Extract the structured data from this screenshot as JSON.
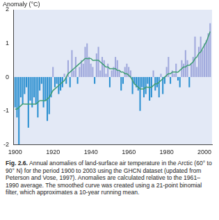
{
  "chart_data": {
    "type": "bar",
    "y_label": "Anomaly (°C)",
    "caption_label": "Fig. 2.6.",
    "caption": "Annual anomalies of land-surface air temperature in the Arctic (60° to 90° N) for the period 1900 to 2003 using the GHCN dataset (updated from Peterson and Vose, 1997). Anomalies are calculated relative to the 1961–1990 average. The smoothed curve was created using a 21-point binomial filter, which approximates a 10-year running mean.",
    "x": [
      1900,
      1901,
      1902,
      1903,
      1904,
      1905,
      1906,
      1907,
      1908,
      1909,
      1910,
      1911,
      1912,
      1913,
      1914,
      1915,
      1916,
      1917,
      1918,
      1919,
      1920,
      1921,
      1922,
      1923,
      1924,
      1925,
      1926,
      1927,
      1928,
      1929,
      1930,
      1931,
      1932,
      1933,
      1934,
      1935,
      1936,
      1937,
      1938,
      1939,
      1940,
      1941,
      1942,
      1943,
      1944,
      1945,
      1946,
      1947,
      1948,
      1949,
      1950,
      1951,
      1952,
      1953,
      1954,
      1955,
      1956,
      1957,
      1958,
      1959,
      1960,
      1961,
      1962,
      1963,
      1964,
      1965,
      1966,
      1967,
      1968,
      1969,
      1970,
      1971,
      1972,
      1973,
      1974,
      1975,
      1976,
      1977,
      1978,
      1979,
      1980,
      1981,
      1982,
      1983,
      1984,
      1985,
      1986,
      1987,
      1988,
      1989,
      1990,
      1991,
      1992,
      1993,
      1994,
      1995,
      1996,
      1997,
      1998,
      1999,
      2000,
      2001,
      2002,
      2003
    ],
    "series": [
      {
        "type": "bar",
        "values": [
          -0.9,
          -1.2,
          -2.0,
          -0.6,
          -0.8,
          -0.5,
          -0.3,
          -1.5,
          -0.7,
          -0.9,
          -0.6,
          -0.8,
          -1.2,
          -0.4,
          -0.2,
          -0.9,
          -0.7,
          -1.3,
          -1.1,
          -0.6,
          0.3,
          -0.3,
          -0.2,
          -0.5,
          -0.4,
          -0.3,
          0.1,
          -0.2,
          0.5,
          -0.3,
          0.8,
          0.2,
          0.6,
          -0.2,
          0.3,
          0.5,
          0.4,
          0.9,
          1.0,
          0.6,
          0.4,
          0.3,
          -0.2,
          0.7,
          0.9,
          0.2,
          0.6,
          0.5,
          0.1,
          0.4,
          -0.3,
          0.2,
          0.3,
          0.6,
          0.5,
          0.2,
          -0.4,
          -0.2,
          0.3,
          0.4,
          0.3,
          0.2,
          -0.5,
          -0.2,
          -0.3,
          -0.4,
          -1.0,
          -0.3,
          -0.6,
          -0.5,
          -0.2,
          -0.7,
          -0.6,
          0.2,
          -0.4,
          -0.3,
          -0.6,
          0.1,
          -0.5,
          -0.2,
          0.3,
          0.6,
          -0.2,
          0.2,
          0.1,
          0.4,
          -0.1,
          -0.3,
          0.5,
          0.4,
          0.8,
          0.5,
          -0.3,
          0.4,
          0.6,
          1.2,
          0.3,
          0.9,
          1.2,
          0.8,
          1.0,
          1.1,
          1.3,
          1.6
        ],
        "colors": [
          "#2a8fd0",
          "#2a8fd0",
          "#2a8fd0",
          "#2a8fd0",
          "#2a8fd0",
          "#2a8fd0",
          "#2a8fd0",
          "#2a8fd0",
          "#2a8fd0",
          "#2a8fd0",
          "#2a8fd0",
          "#2a8fd0",
          "#2a8fd0",
          "#2a8fd0",
          "#2a8fd0",
          "#2a8fd0",
          "#2a8fd0",
          "#2a8fd0",
          "#2a8fd0",
          "#2a8fd0",
          "#9fa8dc",
          "#2a8fd0",
          "#2a8fd0",
          "#2a8fd0",
          "#2a8fd0",
          "#2a8fd0",
          "#9fa8dc",
          "#2a8fd0",
          "#9fa8dc",
          "#2a8fd0",
          "#9fa8dc",
          "#9fa8dc",
          "#9fa8dc",
          "#2a8fd0",
          "#9fa8dc",
          "#9fa8dc",
          "#9fa8dc",
          "#9fa8dc",
          "#9fa8dc",
          "#9fa8dc",
          "#9fa8dc",
          "#9fa8dc",
          "#2a8fd0",
          "#9fa8dc",
          "#9fa8dc",
          "#9fa8dc",
          "#9fa8dc",
          "#9fa8dc",
          "#9fa8dc",
          "#9fa8dc",
          "#2a8fd0",
          "#9fa8dc",
          "#9fa8dc",
          "#9fa8dc",
          "#9fa8dc",
          "#9fa8dc",
          "#2a8fd0",
          "#2a8fd0",
          "#9fa8dc",
          "#9fa8dc",
          "#9fa8dc",
          "#9fa8dc",
          "#2a8fd0",
          "#2a8fd0",
          "#2a8fd0",
          "#2a8fd0",
          "#2a8fd0",
          "#2a8fd0",
          "#2a8fd0",
          "#2a8fd0",
          "#2a8fd0",
          "#2a8fd0",
          "#2a8fd0",
          "#9fa8dc",
          "#2a8fd0",
          "#2a8fd0",
          "#2a8fd0",
          "#9fa8dc",
          "#2a8fd0",
          "#2a8fd0",
          "#9fa8dc",
          "#9fa8dc",
          "#2a8fd0",
          "#9fa8dc",
          "#9fa8dc",
          "#9fa8dc",
          "#2a8fd0",
          "#2a8fd0",
          "#9fa8dc",
          "#9fa8dc",
          "#9fa8dc",
          "#9fa8dc",
          "#2a8fd0",
          "#9fa8dc",
          "#9fa8dc",
          "#9fa8dc",
          "#9fa8dc",
          "#9fa8dc",
          "#9fa8dc",
          "#9fa8dc",
          "#9fa8dc",
          "#9fa8dc",
          "#9fa8dc",
          "#9fa8dc"
        ]
      },
      {
        "type": "line",
        "color": "#3f9e73",
        "marker": "none",
        "values": [
          -0.95,
          -0.95,
          -0.9,
          -0.85,
          -0.8,
          -0.8,
          -0.8,
          -0.8,
          -0.8,
          -0.8,
          -0.8,
          -0.8,
          -0.75,
          -0.7,
          -0.7,
          -0.7,
          -0.7,
          -0.65,
          -0.6,
          -0.5,
          -0.4,
          -0.35,
          -0.3,
          -0.25,
          -0.2,
          -0.15,
          -0.1,
          0,
          0.1,
          0.15,
          0.2,
          0.25,
          0.3,
          0.35,
          0.4,
          0.45,
          0.5,
          0.55,
          0.55,
          0.55,
          0.55,
          0.5,
          0.5,
          0.5,
          0.5,
          0.45,
          0.4,
          0.35,
          0.3,
          0.3,
          0.25,
          0.25,
          0.25,
          0.25,
          0.2,
          0.2,
          0.15,
          0.15,
          0.1,
          0.1,
          0.05,
          0,
          -0.1,
          -0.2,
          -0.25,
          -0.3,
          -0.35,
          -0.35,
          -0.35,
          -0.3,
          -0.3,
          -0.3,
          -0.3,
          -0.25,
          -0.2,
          -0.2,
          -0.15,
          -0.1,
          -0.05,
          0,
          0.05,
          0.1,
          0.1,
          0.15,
          0.15,
          0.15,
          0.15,
          0.2,
          0.25,
          0.3,
          0.3,
          0.35,
          0.35,
          0.4,
          0.45,
          0.55,
          0.6,
          0.7,
          0.75,
          0.85,
          0.95,
          1.05,
          1.2,
          1.35
        ]
      }
    ],
    "xlim": [
      1899,
      2004
    ],
    "xticks": [
      1900,
      1920,
      1940,
      1960,
      1980,
      2000
    ],
    "ylim": [
      -2,
      2
    ],
    "yticks": [
      -2,
      -1,
      0,
      1,
      2
    ],
    "grid": false
  }
}
